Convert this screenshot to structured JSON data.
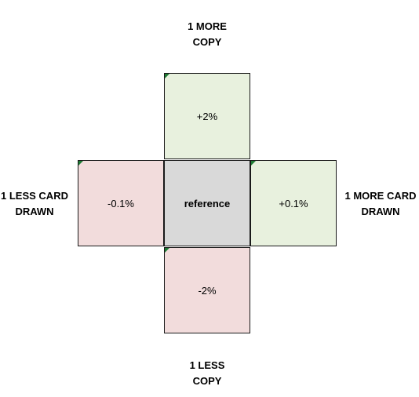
{
  "labels": {
    "top": "1 MORE\nCOPY",
    "bottom": "1 LESS\nCOPY",
    "left": "1 LESS CARD\nDRAWN",
    "right": "1 MORE CARD\nDRAWN"
  },
  "cells": {
    "top": {
      "value": "+2%",
      "color": "#e8f1de"
    },
    "left": {
      "value": "-0.1%",
      "color": "#f2dcdc"
    },
    "center": {
      "value": "reference",
      "color": "#d9d9d9"
    },
    "right": {
      "value": "+0.1%",
      "color": "#e8f1de"
    },
    "bottom": {
      "value": "-2%",
      "color": "#f2dcdc"
    }
  },
  "marker_color": "#1e7b34"
}
